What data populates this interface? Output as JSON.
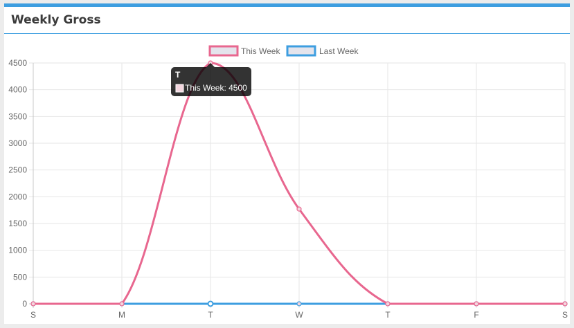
{
  "panel": {
    "title": "Weekly Gross"
  },
  "colors": {
    "accent": "#3d9ee0",
    "this_week": "#e8678f",
    "last_week": "#3d9ee0",
    "grid": "#e6e6e6"
  },
  "chart_data": {
    "type": "line",
    "categories": [
      "S",
      "M",
      "T",
      "W",
      "T",
      "F",
      "S"
    ],
    "series": [
      {
        "name": "This Week",
        "values": [
          0,
          0,
          4500,
          1770,
          0,
          0,
          0
        ],
        "color": "#e8678f"
      },
      {
        "name": "Last Week",
        "values": [
          0,
          0,
          0,
          0,
          0,
          0,
          0
        ],
        "color": "#3d9ee0"
      }
    ],
    "ylim": [
      0,
      4500
    ],
    "yticks": [
      0,
      500,
      1000,
      1500,
      2000,
      2500,
      3000,
      3500,
      4000,
      4500
    ],
    "legend": "top",
    "grid": true,
    "tooltip": {
      "title": "T",
      "label": "This Week: 4500",
      "category_index": 2,
      "series_index": 0
    }
  }
}
